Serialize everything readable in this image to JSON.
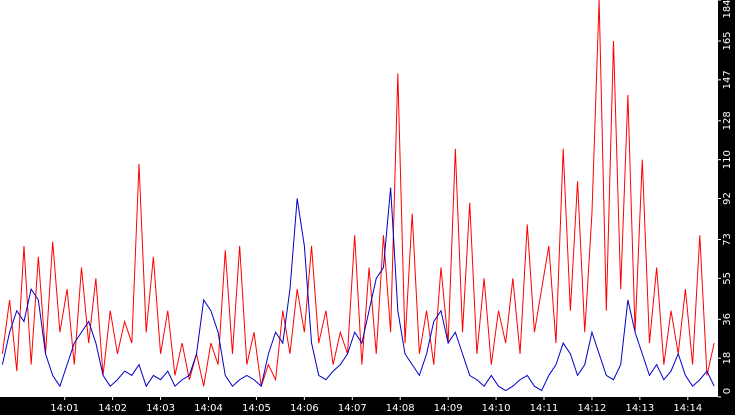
{
  "chart_data": {
    "type": "line",
    "x": [
      -0.3,
      -0.15,
      0,
      0.15,
      0.3,
      0.45,
      0.6,
      0.75,
      0.9,
      1.05,
      1.2,
      1.35,
      1.5,
      1.65,
      1.8,
      1.95,
      2.1,
      2.25,
      2.4,
      2.55,
      2.7,
      2.85,
      3,
      3.15,
      3.3,
      3.45,
      3.6,
      3.75,
      3.9,
      4.05,
      4.2,
      4.35,
      4.5,
      4.65,
      4.8,
      4.95,
      5.1,
      5.25,
      5.4,
      5.55,
      5.7,
      5.85,
      6,
      6.15,
      6.3,
      6.45,
      6.6,
      6.75,
      6.9,
      7.05,
      7.2,
      7.35,
      7.5,
      7.65,
      7.8,
      7.95,
      8.1,
      8.25,
      8.4,
      8.55,
      8.7,
      8.85,
      9,
      9.15,
      9.3,
      9.45,
      9.6,
      9.75,
      9.9,
      10.05,
      10.2,
      10.35,
      10.5,
      10.65,
      10.8,
      10.95,
      11.1,
      11.25,
      11.4,
      11.55,
      11.7,
      11.85,
      12,
      12.15,
      12.3,
      12.45,
      12.6,
      12.75,
      12.9,
      13.05,
      13.2,
      13.35,
      13.5,
      13.65,
      13.8,
      13.95,
      14.1,
      14.25,
      14.4,
      14.55
    ],
    "series": [
      {
        "color": "#ff0000",
        "values": [
          20,
          45,
          12,
          70,
          15,
          65,
          20,
          72,
          30,
          50,
          15,
          60,
          25,
          55,
          10,
          40,
          20,
          35,
          25,
          108,
          30,
          65,
          20,
          40,
          10,
          25,
          8,
          20,
          5,
          25,
          15,
          68,
          20,
          70,
          15,
          30,
          5,
          15,
          8,
          40,
          20,
          50,
          30,
          70,
          25,
          40,
          15,
          30,
          20,
          75,
          15,
          60,
          20,
          75,
          30,
          150,
          25,
          85,
          20,
          40,
          15,
          60,
          25,
          115,
          30,
          90,
          20,
          55,
          15,
          40,
          25,
          55,
          20,
          80,
          30,
          50,
          70,
          25,
          115,
          40,
          100,
          30,
          85,
          184,
          40,
          165,
          50,
          140,
          30,
          110,
          25,
          60,
          15,
          40,
          20,
          50,
          15,
          75,
          10,
          25
        ]
      },
      {
        "color": "#0000cc",
        "values": [
          15,
          30,
          40,
          35,
          50,
          45,
          20,
          10,
          5,
          15,
          25,
          30,
          35,
          25,
          10,
          5,
          8,
          12,
          10,
          15,
          5,
          10,
          8,
          12,
          5,
          8,
          10,
          20,
          45,
          40,
          30,
          10,
          5,
          8,
          10,
          8,
          5,
          20,
          30,
          25,
          50,
          92,
          70,
          25,
          10,
          8,
          12,
          15,
          20,
          30,
          25,
          40,
          55,
          60,
          97,
          40,
          20,
          15,
          10,
          20,
          35,
          40,
          25,
          30,
          20,
          10,
          8,
          5,
          10,
          5,
          3,
          5,
          8,
          10,
          5,
          3,
          10,
          15,
          25,
          20,
          10,
          15,
          30,
          20,
          10,
          8,
          15,
          45,
          30,
          20,
          10,
          15,
          8,
          12,
          20,
          10,
          5,
          8,
          12,
          5
        ]
      }
    ],
    "xlim": [
      -0.35,
      14.63
    ],
    "xticks": [
      {
        "value": 1,
        "label": "14:01"
      },
      {
        "value": 2,
        "label": "14:02"
      },
      {
        "value": 3,
        "label": "14:03"
      },
      {
        "value": 4,
        "label": "14:04"
      },
      {
        "value": 5,
        "label": "14:05"
      },
      {
        "value": 6,
        "label": "14:06"
      },
      {
        "value": 7,
        "label": "14:07"
      },
      {
        "value": 8,
        "label": "14:08"
      },
      {
        "value": 9,
        "label": "14:09"
      },
      {
        "value": 10,
        "label": "14:10"
      },
      {
        "value": 11,
        "label": "14:11"
      },
      {
        "value": 12,
        "label": "14:12"
      },
      {
        "value": 13,
        "label": "14:13"
      },
      {
        "value": 14,
        "label": "14:14"
      }
    ],
    "ylim": [
      0,
      184
    ],
    "yticks": [
      0,
      18,
      36,
      55,
      73,
      92,
      110,
      128,
      147,
      165,
      184
    ]
  }
}
